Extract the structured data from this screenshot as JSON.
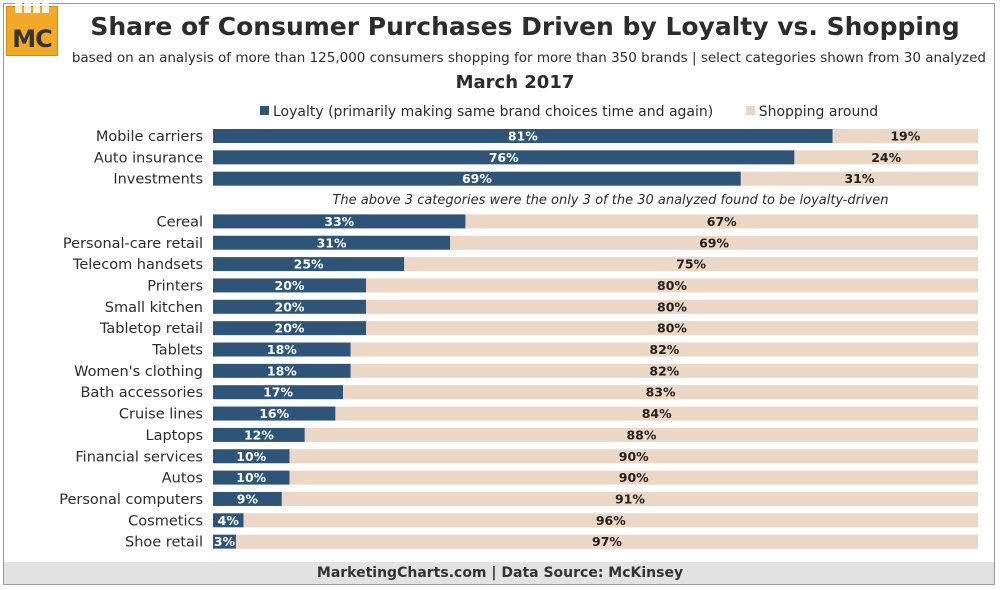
{
  "header": {
    "logo_text": "MC",
    "title": "Share of Consumer Purchases Driven by Loyalty vs. Shopping",
    "subtitle": "based on an analysis of more than 125,000 consumers shopping for more than 350 brands | select categories shown from 30 analyzed",
    "date": "March 2017"
  },
  "legend": {
    "loyalty_label": "Loyalty (primarily making same brand choices time and again)",
    "shopping_label": "Shopping around"
  },
  "colors": {
    "loyalty": "#2e5478",
    "shopping": "#ecd6c5",
    "text": "#2c2c2c"
  },
  "footer": {
    "source": "MarketingCharts.com | Data Source: McKinsey"
  },
  "chart_data": {
    "type": "bar",
    "orientation": "horizontal",
    "stacked": true,
    "percent_stacked": true,
    "title": "Share of Consumer Purchases Driven by Loyalty vs. Shopping",
    "annotation": "The above 3 categories were the only 3 of the 30 analyzed found to be loyalty-driven",
    "annotation_after_index": 2,
    "categories": [
      "Mobile carriers",
      "Auto insurance",
      "Investments",
      "Cereal",
      "Personal-care retail",
      "Telecom handsets",
      "Printers",
      "Small kitchen",
      "Tabletop retail",
      "Tablets",
      "Women's clothing",
      "Bath accessories",
      "Cruise lines",
      "Laptops",
      "Financial services",
      "Autos",
      "Personal computers",
      "Cosmetics",
      "Shoe retail"
    ],
    "series": [
      {
        "name": "Loyalty (primarily making same brand choices time and again)",
        "values": [
          81,
          76,
          69,
          33,
          31,
          25,
          20,
          20,
          20,
          18,
          18,
          17,
          16,
          12,
          10,
          10,
          9,
          4,
          3
        ]
      },
      {
        "name": "Shopping around",
        "values": [
          19,
          24,
          31,
          67,
          69,
          75,
          80,
          80,
          80,
          82,
          82,
          83,
          84,
          88,
          90,
          90,
          91,
          96,
          97
        ]
      }
    ],
    "value_suffix": "%",
    "xlim": [
      0,
      100
    ],
    "legend_position": "top",
    "grid": false
  }
}
